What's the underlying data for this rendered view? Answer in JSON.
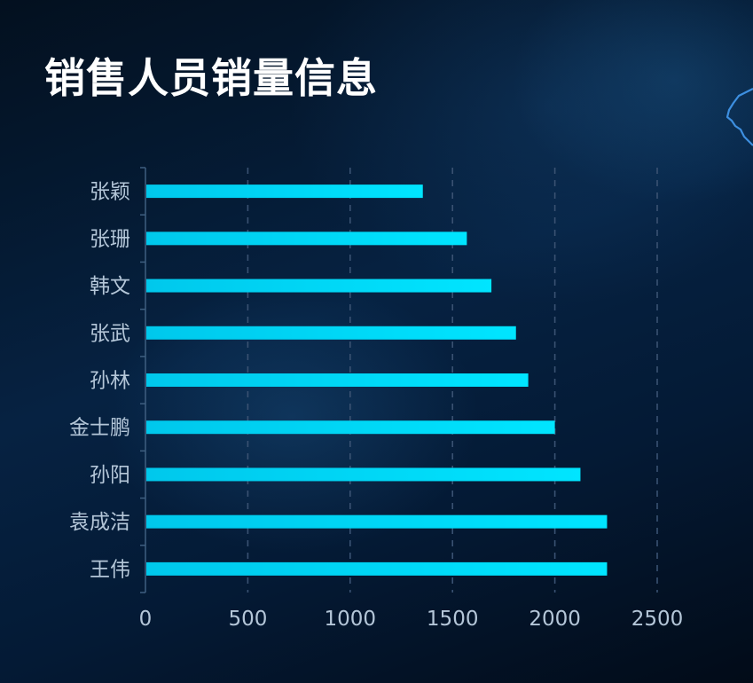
{
  "page": {
    "title": "销售人员销量信息"
  },
  "colors": {
    "bar": "#00e5ff",
    "bar_start": "#00c8ec",
    "axis_label": "#b4c6d8",
    "axis_line": "#3f5f80",
    "grid": "#3a5272",
    "decor_outline": "#3d8fe0"
  },
  "chart_data": {
    "type": "bar",
    "orientation": "horizontal",
    "title": "销售人员销量信息",
    "categories": [
      "张颖",
      "张珊",
      "韩文",
      "张武",
      "孙林",
      "金士鹏",
      "孙阳",
      "袁成洁",
      "王伟"
    ],
    "values": [
      1355,
      1570,
      1690,
      1810,
      1870,
      2000,
      2125,
      2255,
      2255
    ],
    "x_ticks": [
      "0",
      "500",
      "1000",
      "1500",
      "2000",
      "2500"
    ],
    "xlim": [
      0,
      2500
    ],
    "grid": "vertical-dashed",
    "legend": "none"
  }
}
